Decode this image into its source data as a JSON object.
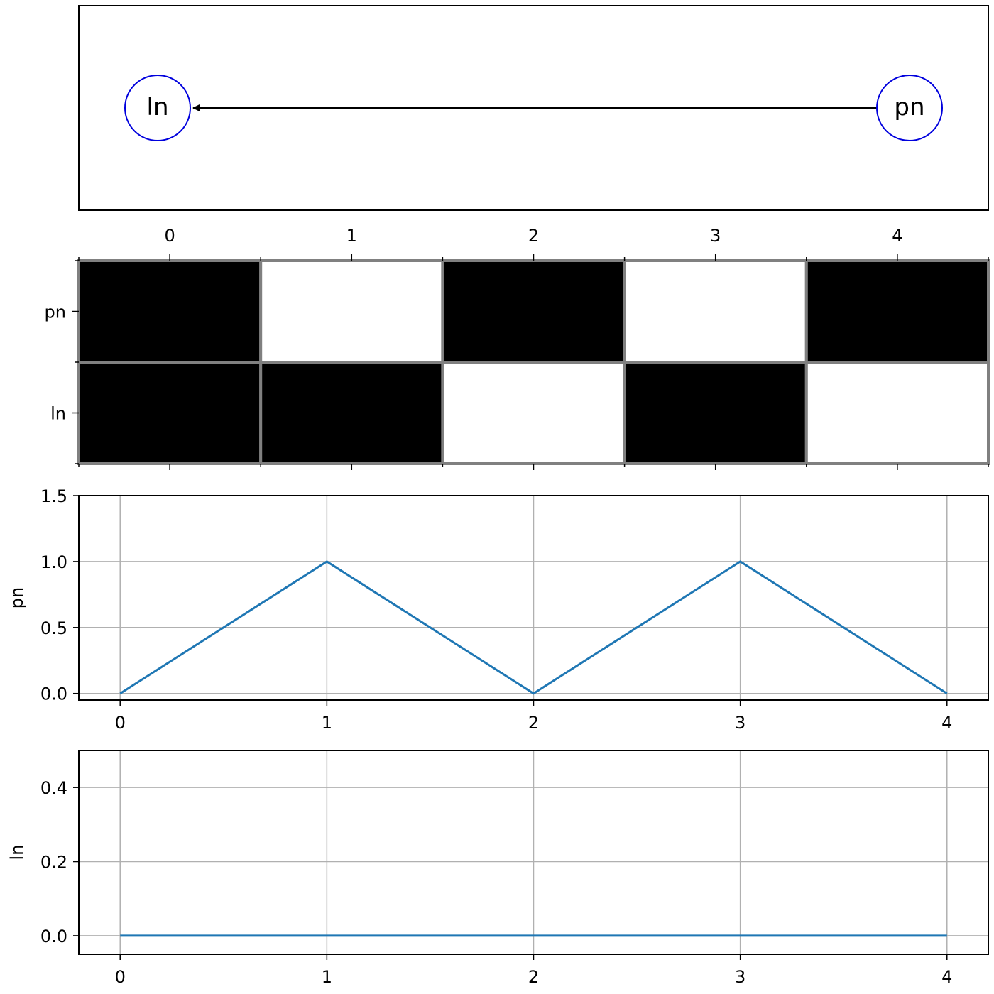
{
  "chart_data": [
    {
      "type": "network",
      "nodes": [
        {
          "id": "ln",
          "label": "ln"
        },
        {
          "id": "pn",
          "label": "pn"
        }
      ],
      "edges": [
        {
          "from": "pn",
          "to": "ln"
        }
      ],
      "colors": {
        "node_stroke": "#0000dd",
        "edge": "#000000"
      }
    },
    {
      "type": "heatmap",
      "x_ticks": [
        "0",
        "1",
        "2",
        "3",
        "4"
      ],
      "rows": [
        "pn",
        "ln"
      ],
      "values": [
        [
          1,
          0,
          1,
          0,
          1
        ],
        [
          1,
          1,
          0,
          1,
          0
        ]
      ],
      "colors": {
        "on": "#000000",
        "off": "#ffffff",
        "grid": "#808080"
      }
    },
    {
      "type": "line",
      "x": [
        0,
        1,
        2,
        3,
        4
      ],
      "y": [
        0,
        1,
        0,
        1,
        0
      ],
      "ylabel": "pn",
      "xlim": [
        -0.2,
        4.2
      ],
      "ylim": [
        -0.05,
        1.5
      ],
      "yticks": [
        "0.0",
        "0.5",
        "1.0",
        "1.5"
      ],
      "xticks": [
        "0",
        "1",
        "2",
        "3",
        "4"
      ],
      "grid": true,
      "color": "#1f77b4"
    },
    {
      "type": "line",
      "x": [
        0,
        1,
        2,
        3,
        4
      ],
      "y": [
        0,
        0,
        0,
        0,
        0
      ],
      "ylabel": "ln",
      "xlim": [
        -0.2,
        4.2
      ],
      "ylim": [
        -0.05,
        0.5
      ],
      "yticks": [
        "0.0",
        "0.2",
        "0.4"
      ],
      "xticks": [
        "0",
        "1",
        "2",
        "3",
        "4"
      ],
      "grid": true,
      "color": "#1f77b4"
    }
  ]
}
